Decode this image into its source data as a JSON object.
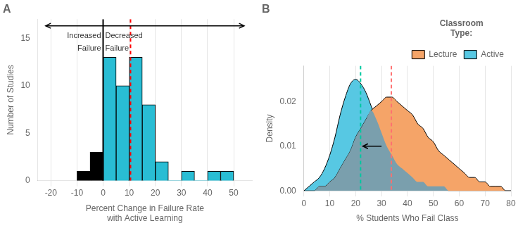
{
  "chart_data": [
    {
      "type": "histogram",
      "title": "A",
      "xlabel": "Percent Change in Failure Rate\nwith Active Learning",
      "ylabel": "Number of Studies",
      "bins": [
        -10,
        -5,
        0,
        5,
        10,
        15,
        20,
        25,
        30,
        35,
        40,
        45,
        50
      ],
      "values": [
        1,
        3,
        13,
        10,
        13,
        8,
        2,
        0,
        1,
        0,
        1,
        1
      ],
      "colors": [
        "#000000",
        "#000000",
        "#29BDD4",
        "#29BDD4",
        "#29BDD4",
        "#29BDD4",
        "#29BDD4",
        "#29BDD4",
        "#29BDD4",
        "#29BDD4",
        "#29BDD4",
        "#29BDD4"
      ],
      "xlim": [
        -25,
        57
      ],
      "ylim": [
        0,
        17
      ],
      "xticks": [
        -20,
        -10,
        0,
        10,
        20,
        30,
        40,
        50
      ],
      "yticks": [
        0,
        5,
        10,
        15
      ],
      "grid": "x",
      "vlines": [
        {
          "x": 0,
          "color": "black",
          "line_style": "solid"
        },
        {
          "x": 10.5,
          "color": "red",
          "line_style": "dashed"
        }
      ],
      "arrows": [
        {
          "from": [
            -22,
            16.3
          ],
          "to": [
            54,
            16.3
          ],
          "type": "double"
        }
      ],
      "annotations": [
        {
          "text": "Increased",
          "x": -0.8,
          "y": 14.8
        },
        {
          "text": "Failure",
          "x": -0.8,
          "y": 13.5
        },
        {
          "text": "Decreased",
          "x": 0.8,
          "y": 14.8
        },
        {
          "text": "Failure",
          "x": 0.8,
          "y": 13.5
        }
      ]
    },
    {
      "type": "area",
      "title": "B",
      "xlabel": "% Students Who Fail Class",
      "ylabel": "Density",
      "x": [
        0,
        2,
        4,
        6,
        8,
        10,
        12,
        14,
        16,
        18,
        20,
        22,
        24,
        26,
        28,
        30,
        32,
        34,
        36,
        38,
        40,
        42,
        44,
        46,
        48,
        50,
        52,
        54,
        56,
        58,
        60,
        62,
        64,
        66,
        68,
        70,
        72,
        74,
        76,
        78,
        80
      ],
      "series": [
        {
          "name": "Lecture",
          "color": "#F5A468",
          "values": [
            0.0,
            0.0,
            0.0,
            0.001,
            0.001,
            0.002,
            0.003,
            0.005,
            0.007,
            0.009,
            0.012,
            0.014,
            0.016,
            0.018,
            0.019,
            0.02,
            0.021,
            0.021,
            0.02,
            0.019,
            0.018,
            0.017,
            0.015,
            0.014,
            0.012,
            0.011,
            0.009,
            0.008,
            0.007,
            0.006,
            0.005,
            0.004,
            0.003,
            0.003,
            0.002,
            0.002,
            0.001,
            0.001,
            0.001,
            0.0,
            0.0
          ]
        },
        {
          "name": "Active",
          "color": "#57C8E3",
          "values": [
            0.0,
            0.001,
            0.002,
            0.003,
            0.005,
            0.008,
            0.012,
            0.017,
            0.021,
            0.024,
            0.025,
            0.024,
            0.022,
            0.019,
            0.016,
            0.013,
            0.01,
            0.008,
            0.006,
            0.005,
            0.004,
            0.003,
            0.002,
            0.002,
            0.001,
            0.001,
            0.001,
            0.001,
            0.0,
            0.0,
            0.0,
            0.0,
            0.0,
            0.0,
            0.0,
            0.0,
            0.0,
            0.0,
            0.0,
            0.0,
            0.0
          ]
        },
        {
          "color": "#7A9FAD",
          "values": [
            0.0,
            0.0,
            0.0,
            0.001,
            0.001,
            0.002,
            0.003,
            0.005,
            0.007,
            0.009,
            0.012,
            0.014,
            0.016,
            0.018,
            0.016,
            0.013,
            0.01,
            0.008,
            0.006,
            0.005,
            0.004,
            0.003,
            0.002,
            0.002,
            0.001,
            0.001,
            0.001,
            0.001,
            0.0,
            0.0,
            0.0,
            0.0,
            0.0,
            0.0,
            0.0,
            0.0,
            0.0,
            0.0,
            0.0,
            0.0,
            0.0
          ]
        }
      ],
      "xlim": [
        0,
        80
      ],
      "ylim": [
        0,
        0.028
      ],
      "xticks": [
        0,
        10,
        20,
        30,
        40,
        50,
        60,
        70,
        80
      ],
      "yticks": [
        {
          "value": 0,
          "label": "0.00"
        },
        {
          "value": 0.01,
          "label": "0.01"
        },
        {
          "value": 0.02,
          "label": "0.02"
        }
      ],
      "grid": "x",
      "legend": "upper right",
      "legend_title": "Classroom\nType:",
      "vlines": [
        {
          "x": 21.9,
          "color": "#00C8A0",
          "line_style": "dashed"
        },
        {
          "x": 33.8,
          "color": "#FF7070",
          "line_style": "dashed"
        }
      ],
      "arrows": [
        {
          "from": [
            30,
            0.01
          ],
          "to": [
            22.8,
            0.01
          ],
          "type": "single"
        }
      ]
    }
  ]
}
